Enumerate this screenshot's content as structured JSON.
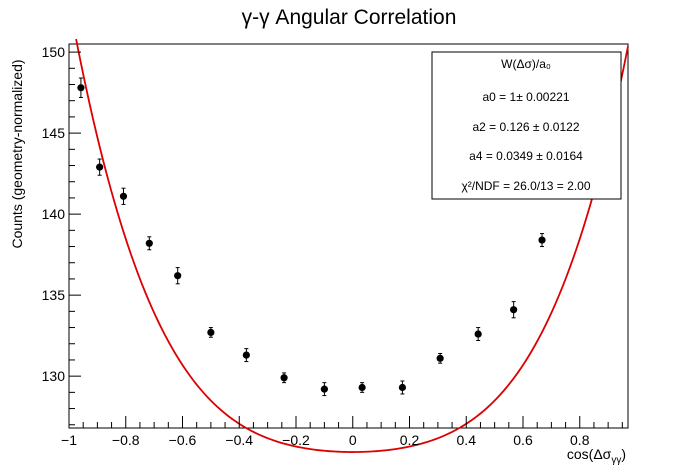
{
  "chart_data": {
    "type": "scatter",
    "title": "γ-γ Angular Correlation",
    "xlabel": "cos(Δσ",
    "xlabel_sub": "γγ",
    "xlabel_close": ")",
    "ylabel": "Counts (geometry-normalized)",
    "xlim": [
      -1.0,
      0.97
    ],
    "ylim": [
      126.8,
      150.5
    ],
    "x_ticks": [
      -1,
      -0.8,
      -0.6,
      -0.4,
      -0.2,
      0,
      0.2,
      0.4,
      0.6,
      0.8
    ],
    "x_tick_labels": [
      "−1",
      "−0.8",
      "−0.6",
      "−0.4",
      "−0.2",
      "0",
      "0.2",
      "0.4",
      "0.6",
      "0.8"
    ],
    "y_ticks": [
      130,
      135,
      140,
      145,
      150
    ],
    "y_tick_labels": [
      "130",
      "135",
      "140",
      "145",
      "150"
    ],
    "series": [
      {
        "marker_color": "#000000",
        "points": [
          {
            "x": -0.958,
            "y": 147.8,
            "err": 0.6
          },
          {
            "x": -0.892,
            "y": 142.9,
            "err": 0.5
          },
          {
            "x": -0.808,
            "y": 141.1,
            "err": 0.5
          },
          {
            "x": -0.717,
            "y": 138.2,
            "err": 0.4
          },
          {
            "x": -0.617,
            "y": 136.2,
            "err": 0.5
          },
          {
            "x": -0.5,
            "y": 132.7,
            "err": 0.3
          },
          {
            "x": -0.375,
            "y": 131.3,
            "err": 0.4
          },
          {
            "x": -0.242,
            "y": 129.9,
            "err": 0.3
          },
          {
            "x": -0.1,
            "y": 129.2,
            "err": 0.4
          },
          {
            "x": 0.033,
            "y": 129.3,
            "err": 0.3
          },
          {
            "x": 0.175,
            "y": 129.3,
            "err": 0.4
          },
          {
            "x": 0.308,
            "y": 131.1,
            "err": 0.3
          },
          {
            "x": 0.442,
            "y": 132.6,
            "err": 0.4
          },
          {
            "x": 0.567,
            "y": 134.1,
            "err": 0.5
          },
          {
            "x": 0.667,
            "y": 138.4,
            "err": 0.4
          }
        ]
      }
    ],
    "fit": {
      "color": "#dd0000",
      "norm": 131.9,
      "a2": 0.126,
      "a4": 0.0349,
      "x_range": [
        -0.975,
        0.97
      ]
    },
    "stats_box": {
      "lines": [
        "W(Δσ)/a₀",
        "a0 = 1± 0.00221",
        "a2 = 0.126 ± 0.0122",
        "a4 = 0.0349 ± 0.0164",
        "χ²/NDF = 26.0/13 = 2.00"
      ]
    }
  }
}
